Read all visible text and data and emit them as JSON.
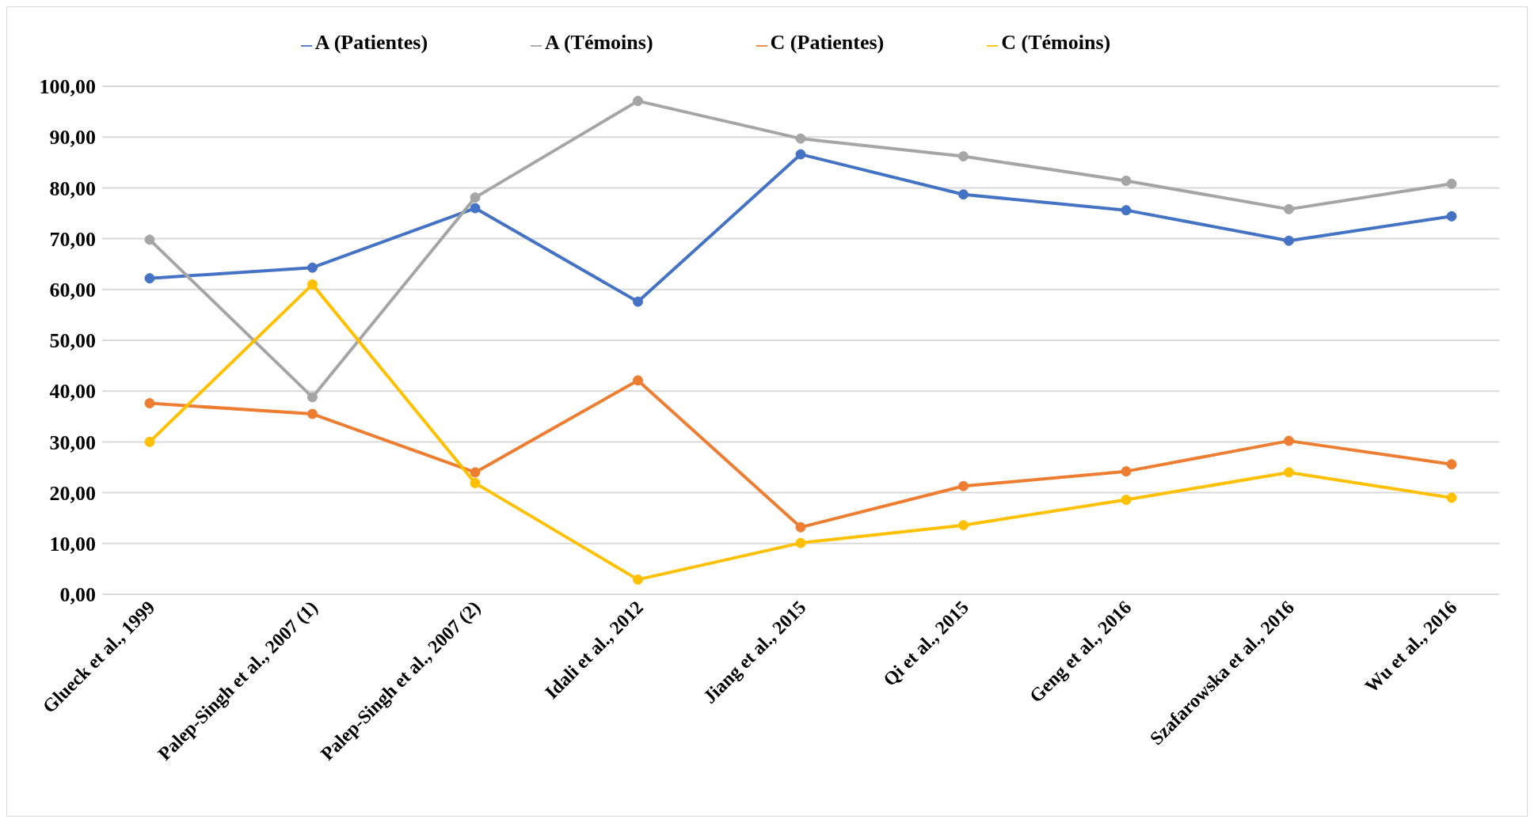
{
  "chart_data": {
    "type": "line",
    "categories": [
      "Glueck et al., 1999",
      "Palep-Singh et al., 2007 (1)",
      "Palep-Singh et al., 2007 (2)",
      "Idali et al.,  2012",
      "Jiang et al., 2015",
      "Qi et al., 2015",
      "Geng et al., 2016",
      "Szafarowska et al., 2016",
      "Wu et al., 2016"
    ],
    "series": [
      {
        "name": "A (Patientes)",
        "color": "#4472c4",
        "values": [
          62.2,
          64.3,
          76.0,
          57.6,
          86.6,
          78.7,
          75.6,
          69.6,
          74.4
        ]
      },
      {
        "name": "C (Patientes)",
        "color": "#ed7d31",
        "values": [
          37.6,
          35.5,
          24.0,
          42.1,
          13.2,
          21.3,
          24.2,
          30.2,
          25.6
        ]
      },
      {
        "name": "A (Témoins)",
        "color": "#a5a5a5",
        "values": [
          69.8,
          38.8,
          78.1,
          97.1,
          89.7,
          86.2,
          81.4,
          75.8,
          80.8
        ]
      },
      {
        "name": "C (Témoins)",
        "color": "#ffc000",
        "values": [
          30.0,
          61.0,
          21.9,
          2.9,
          10.1,
          13.6,
          18.6,
          24.0,
          19.0
        ]
      }
    ],
    "ylim": [
      0,
      100
    ],
    "yticks": [
      {
        "value": 0,
        "label": "0,00"
      },
      {
        "value": 10,
        "label": "10,00"
      },
      {
        "value": 20,
        "label": "20,00"
      },
      {
        "value": 30,
        "label": "30,00"
      },
      {
        "value": 40,
        "label": "40,00"
      },
      {
        "value": 50,
        "label": "50,00"
      },
      {
        "value": 60,
        "label": "60,00"
      },
      {
        "value": 70,
        "label": "70,00"
      },
      {
        "value": 80,
        "label": "80,00"
      },
      {
        "value": 90,
        "label": "90,00"
      },
      {
        "value": 100,
        "label": "100,00"
      }
    ],
    "grid": "y",
    "legend": "top",
    "marker": "circle",
    "line_style": "solid"
  }
}
